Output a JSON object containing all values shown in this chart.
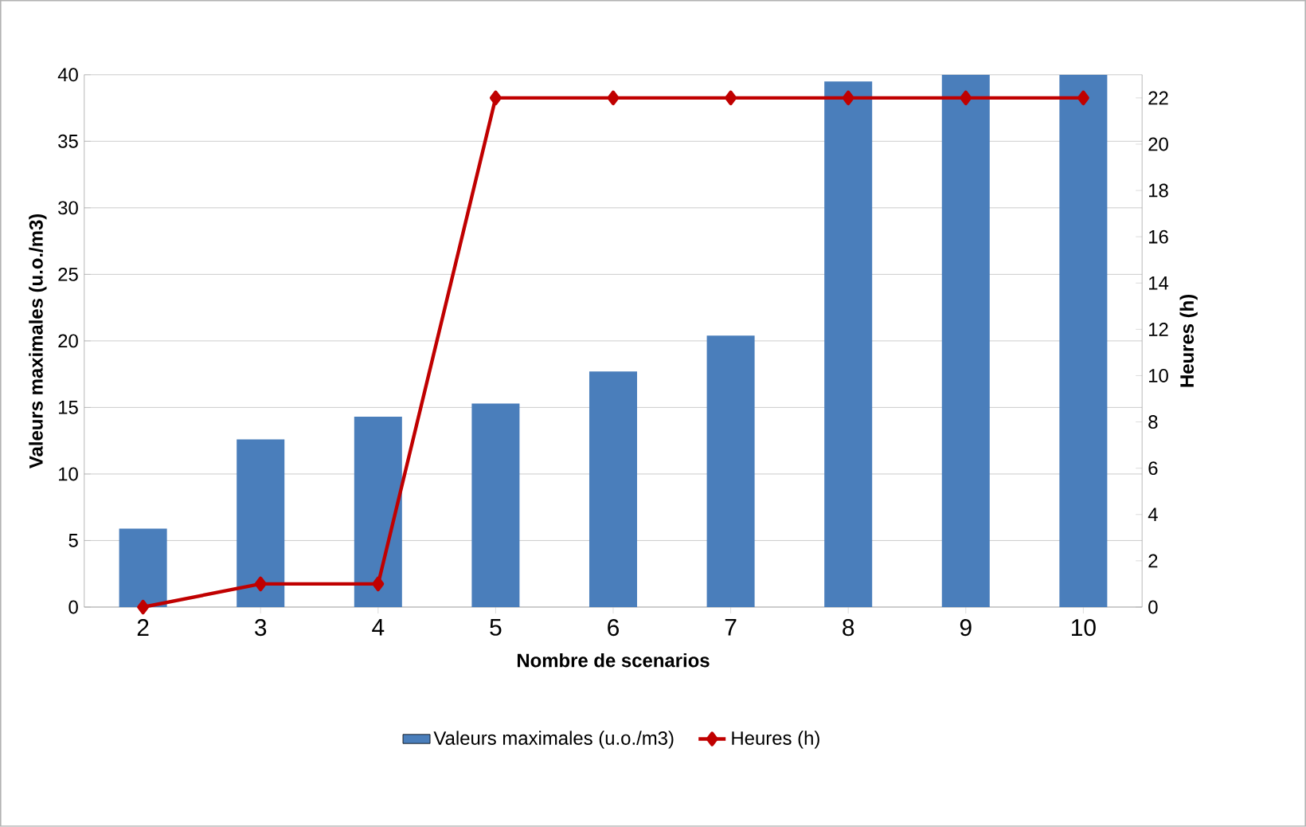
{
  "chart_data": {
    "type": "bar",
    "categories": [
      "2",
      "3",
      "4",
      "5",
      "6",
      "7",
      "8",
      "9",
      "10"
    ],
    "series": [
      {
        "name": "Valeurs maximales (u.o./m3)",
        "color": "#4a7ebb",
        "values": [
          5.9,
          12.6,
          14.3,
          15.3,
          17.7,
          20.4,
          39.5,
          40,
          40
        ]
      },
      {
        "name": "Heures (h)",
        "type": "line",
        "axis": "y2",
        "color": "#c00000",
        "values": [
          0,
          1,
          1,
          22,
          22,
          22,
          22,
          22,
          22
        ]
      }
    ],
    "xlabel": "Nombre de scenarios",
    "ylabel": "Valeurs maximales (u.o./m3)",
    "y2label": "Heures (h)",
    "ylim": [
      0,
      40
    ],
    "yticks": [
      0,
      5,
      10,
      15,
      20,
      25,
      30,
      35,
      40
    ],
    "y2lim": [
      0,
      23
    ],
    "y2ticks": [
      0,
      2,
      4,
      6,
      8,
      10,
      12,
      14,
      16,
      18,
      20,
      22
    ],
    "grid": "y",
    "legend": "bottom",
    "marker": "diamond"
  }
}
